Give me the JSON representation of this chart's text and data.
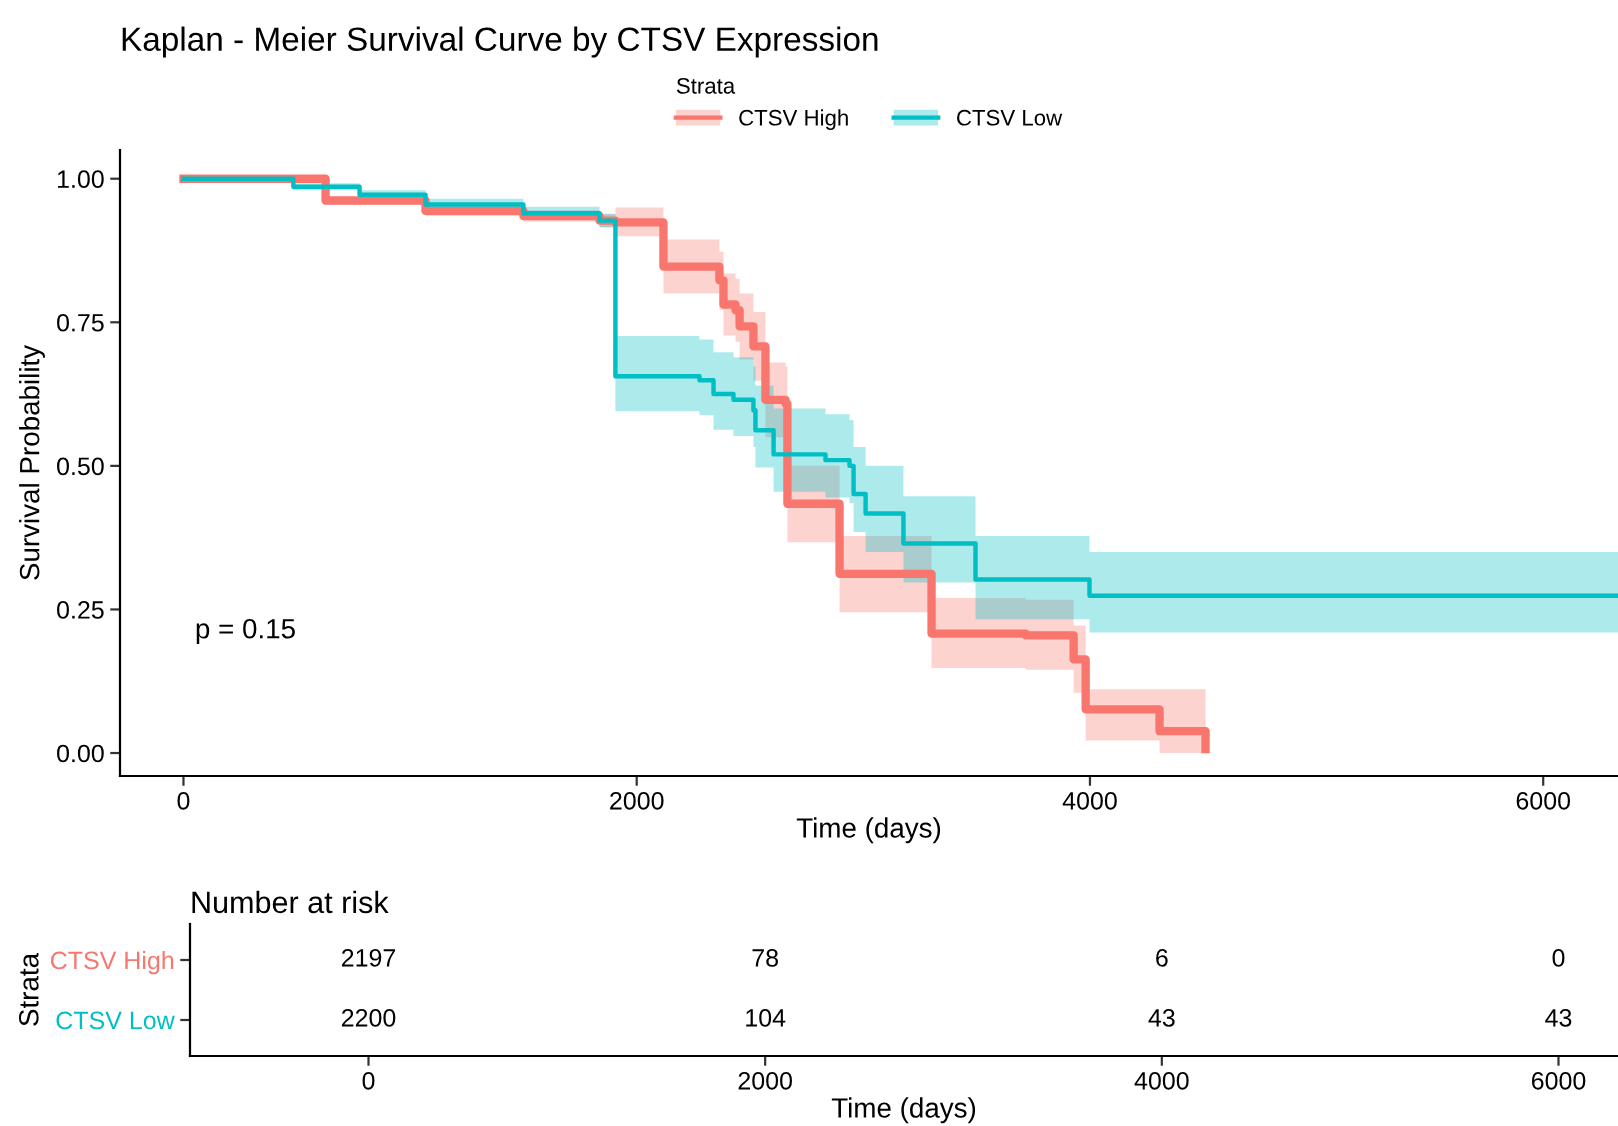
{
  "chart_data": [
    {
      "type": "step",
      "title": "Kaplan - Meier Survival Curve by CTSV Expression",
      "xlabel": "Time (days)",
      "ylabel": "Survival Probability",
      "legend_title": "Strata",
      "legend": "top",
      "grid": false,
      "xlim": [
        -280,
        6330
      ],
      "xticks": [
        0,
        2000,
        4000,
        6000
      ],
      "ylim": [
        -0.04,
        1.05
      ],
      "yticks": [
        {
          "value": 0,
          "label": "0.00"
        },
        {
          "value": 0.25,
          "label": "0.25"
        },
        {
          "value": 0.5,
          "label": "0.50"
        },
        {
          "value": 0.75,
          "label": "0.75"
        },
        {
          "value": 1,
          "label": "1.00"
        }
      ],
      "annotations": [
        "p = 0.15"
      ],
      "series": [
        {
          "name": "CTSV High",
          "color": "#f8766d",
          "x": [
            0,
            627,
            1068,
            1500,
            1836,
            1906,
            2118,
            2365,
            2383,
            2436,
            2454,
            2515,
            2568,
            2657,
            2665,
            2895,
            3301,
            3716,
            3928,
            3981,
            4307,
            4510
          ],
          "values": [
            1.0,
            0.962,
            0.944,
            0.935,
            0.927,
            0.924,
            0.847,
            0.823,
            0.781,
            0.771,
            0.743,
            0.708,
            0.615,
            0.608,
            0.434,
            0.312,
            0.208,
            0.205,
            0.163,
            0.076,
            0.038,
            0.007
          ],
          "lower": [
            1.0,
            0.955,
            0.935,
            0.925,
            0.916,
            0.9,
            0.8,
            0.772,
            0.727,
            0.716,
            0.685,
            0.648,
            0.55,
            0.543,
            0.367,
            0.245,
            0.148,
            0.145,
            0.105,
            0.022,
            0.0,
            0.0
          ],
          "upper": [
            1.0,
            0.969,
            0.953,
            0.945,
            0.938,
            0.95,
            0.894,
            0.873,
            0.835,
            0.826,
            0.8,
            0.768,
            0.68,
            0.673,
            0.5,
            0.378,
            0.27,
            0.267,
            0.222,
            0.111,
            0.111,
            0.111
          ]
        },
        {
          "name": "CTSV Low",
          "color": "#00bfc4",
          "x": [
            0,
            485,
            777,
            1068,
            1500,
            1836,
            1906,
            2277,
            2339,
            2427,
            2515,
            2524,
            2604,
            2833,
            2939,
            2957,
            3010,
            3177,
            3495,
            3998,
            6330
          ],
          "values": [
            1.0,
            0.986,
            0.972,
            0.955,
            0.94,
            0.927,
            0.656,
            0.649,
            0.625,
            0.615,
            0.597,
            0.562,
            0.52,
            0.51,
            0.5,
            0.451,
            0.417,
            0.365,
            0.302,
            0.274,
            0.274
          ],
          "lower": [
            1.0,
            0.98,
            0.964,
            0.945,
            0.929,
            0.915,
            0.595,
            0.588,
            0.563,
            0.552,
            0.533,
            0.497,
            0.455,
            0.445,
            0.435,
            0.385,
            0.35,
            0.297,
            0.233,
            0.21,
            0.21
          ],
          "upper": [
            1.0,
            0.992,
            0.98,
            0.965,
            0.951,
            0.939,
            0.726,
            0.72,
            0.698,
            0.689,
            0.673,
            0.64,
            0.6,
            0.59,
            0.58,
            0.533,
            0.5,
            0.447,
            0.378,
            0.35,
            0.35
          ]
        }
      ]
    },
    {
      "type": "heatmap",
      "title": "Number at risk",
      "xlabel": "Time (days)",
      "ylabel": "Strata",
      "data_labels": true,
      "categories": [
        "0",
        "2000",
        "4000",
        "6000"
      ],
      "y_categories": [
        "CTSV High",
        "CTSV Low"
      ],
      "colors": [
        "#f8766d",
        "#00bfc4"
      ],
      "cells": [
        [
          2197,
          78,
          6,
          0
        ],
        [
          2200,
          104,
          43,
          43
        ]
      ]
    }
  ]
}
